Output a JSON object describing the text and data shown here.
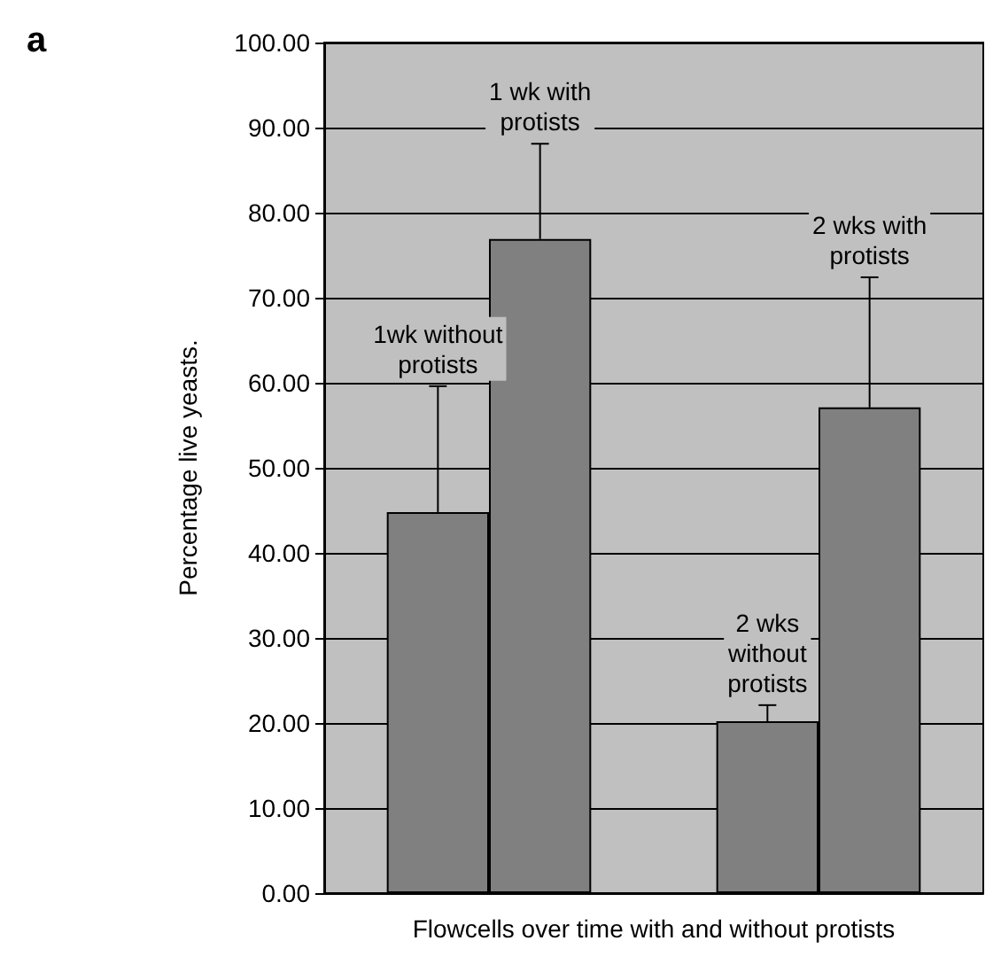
{
  "chart_data": {
    "type": "bar",
    "title": "a",
    "xlabel": "Flowcells over time with and without protists",
    "ylabel": "Percentage live yeasts.",
    "categories": [
      null,
      null
    ],
    "series": [
      {
        "color": "#808080",
        "values": [
          44.8,
          20.2
        ],
        "errors": [
          [
            44.8,
            59.6
          ],
          [
            20.2,
            22.1
          ]
        ]
      },
      {
        "color": "#808080",
        "values": [
          76.9,
          57.1
        ],
        "errors": [
          [
            76.9,
            88.1
          ],
          [
            57.1,
            72.4
          ]
        ]
      }
    ],
    "annotations": [
      "1wk without\nprotists",
      "1 wk with\nprotists",
      "2 wks\nwithout\nprotists",
      "2 wks with\nprotists"
    ],
    "ylim": [
      0,
      100
    ],
    "yticks": [
      {
        "value": 0,
        "label": "0.00"
      },
      {
        "value": 10,
        "label": "10.00"
      },
      {
        "value": 20,
        "label": "20.00"
      },
      {
        "value": 30,
        "label": "30.00"
      },
      {
        "value": 40,
        "label": "40.00"
      },
      {
        "value": 50,
        "label": "50.00"
      },
      {
        "value": 60,
        "label": "60.00"
      },
      {
        "value": 70,
        "label": "70.00"
      },
      {
        "value": 80,
        "label": "80.00"
      },
      {
        "value": 90,
        "label": "90.00"
      },
      {
        "value": 100,
        "label": "100.00"
      }
    ],
    "grid": "y",
    "tick_labels": "y"
  }
}
